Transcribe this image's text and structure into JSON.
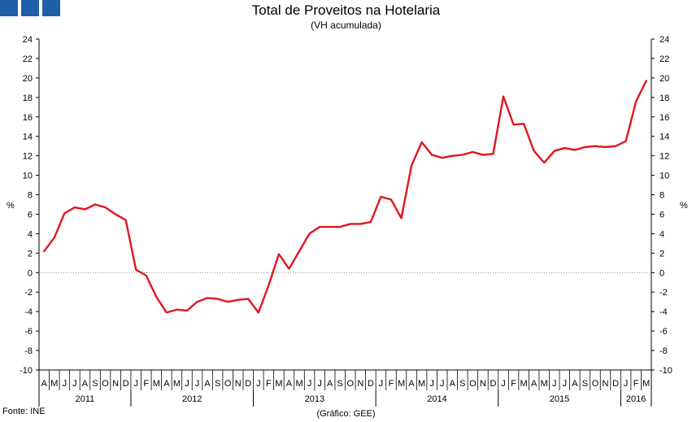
{
  "header": {
    "title": "Total de Proveitos na Hotelaria",
    "subtitle": "(VH acumulada)"
  },
  "footer": {
    "source": "Fonte: INE",
    "credit": "(Gráfico: GEE)"
  },
  "colors": {
    "logo": "#1f5fa8",
    "line": "#e0161f",
    "axis": "#000000"
  },
  "chart_data": {
    "type": "line",
    "title": "Total de Proveitos na Hotelaria",
    "subtitle": "(VH acumulada)",
    "ylabel": "%",
    "ylabel_right": "%",
    "ylim": [
      -10,
      24
    ],
    "yticks": [
      -10,
      -8,
      -6,
      -4,
      -2,
      0,
      2,
      4,
      6,
      8,
      10,
      12,
      14,
      16,
      18,
      20,
      22,
      24
    ],
    "grid": false,
    "month_labels": [
      "A",
      "M",
      "J",
      "J",
      "A",
      "S",
      "O",
      "N",
      "D",
      "J",
      "F",
      "M",
      "A",
      "M",
      "J",
      "J",
      "A",
      "S",
      "O",
      "N",
      "D",
      "J",
      "F",
      "M",
      "A",
      "M",
      "J",
      "J",
      "A",
      "S",
      "O",
      "N",
      "D",
      "J",
      "F",
      "M",
      "A",
      "M",
      "J",
      "J",
      "A",
      "S",
      "O",
      "N",
      "D",
      "J",
      "F",
      "M",
      "A",
      "M",
      "J",
      "J",
      "A",
      "S",
      "O",
      "N",
      "D",
      "J",
      "F",
      "M"
    ],
    "years": [
      {
        "label": "2011",
        "start": 0,
        "end": 8
      },
      {
        "label": "2012",
        "start": 9,
        "end": 20
      },
      {
        "label": "2013",
        "start": 21,
        "end": 32
      },
      {
        "label": "2014",
        "start": 33,
        "end": 44
      },
      {
        "label": "2015",
        "start": 45,
        "end": 56
      },
      {
        "label": "2016",
        "start": 57,
        "end": 59
      }
    ],
    "series": [
      {
        "values": [
          2.2,
          3.6,
          6.1,
          6.7,
          6.5,
          7.0,
          6.7,
          6.0,
          5.4,
          0.3,
          -0.3,
          -2.5,
          -4.1,
          -3.8,
          -3.9,
          -3.0,
          -2.6,
          -2.7,
          -3.0,
          -2.8,
          -2.7,
          -4.1,
          -1.3,
          1.9,
          0.4,
          2.2,
          4.0,
          4.7,
          4.7,
          4.7,
          5.0,
          5.0,
          5.2,
          7.8,
          7.5,
          5.6,
          11.0,
          13.4,
          12.1,
          11.8,
          12.0,
          12.1,
          12.4,
          12.1,
          12.2,
          18.1,
          15.2,
          15.3,
          12.5,
          11.3,
          12.5,
          12.8,
          12.6,
          12.9,
          13.0,
          12.9,
          13.0,
          13.5,
          17.6,
          19.7
        ]
      }
    ]
  }
}
